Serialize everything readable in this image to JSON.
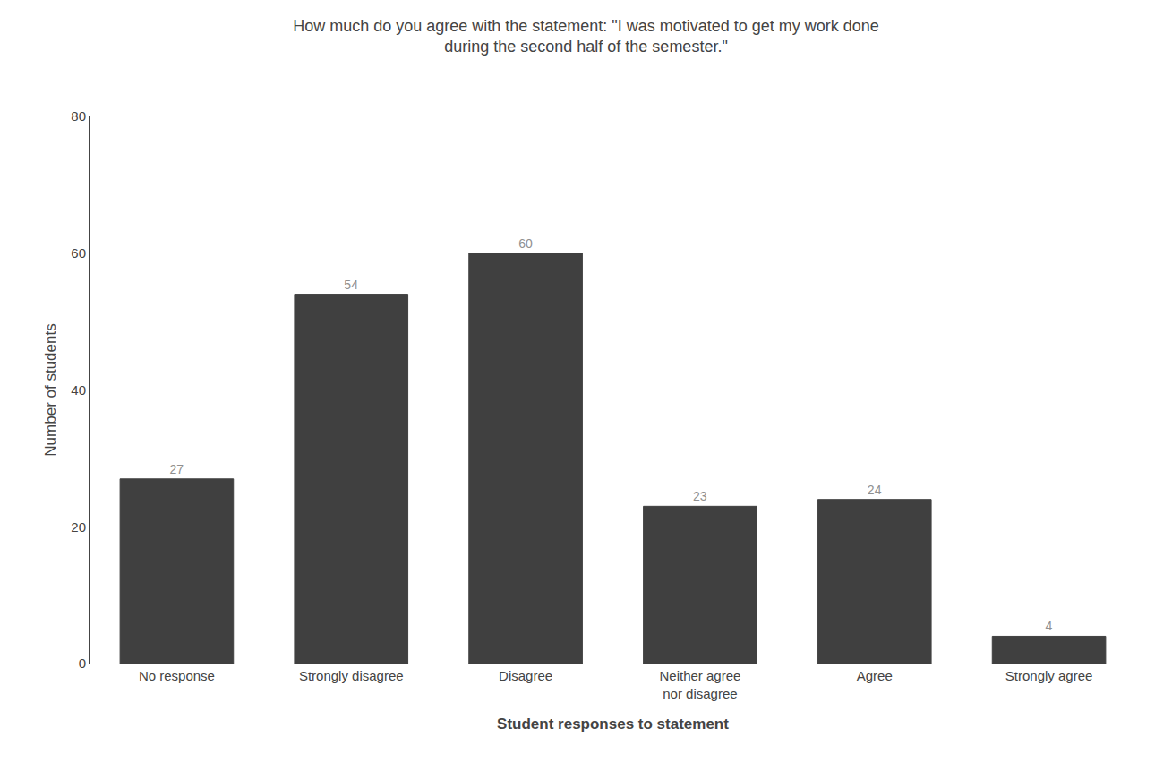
{
  "chart_data": {
    "type": "bar",
    "title": "How much do you agree with the statement: \"I was motivated to get my work done\nduring the second half of the semester.\"",
    "xlabel": "Student responses to statement",
    "ylabel": "Number of students",
    "categories": [
      "No response",
      "Strongly disagree",
      "Disagree",
      "Neither agree\nnor disagree",
      "Agree",
      "Strongly agree"
    ],
    "values": [
      27,
      54,
      60,
      23,
      24,
      4
    ],
    "color": "#404040",
    "ylim": [
      0,
      80
    ],
    "yticks": [
      0,
      20,
      40,
      60,
      80
    ],
    "grid": false,
    "data_labels": true
  }
}
